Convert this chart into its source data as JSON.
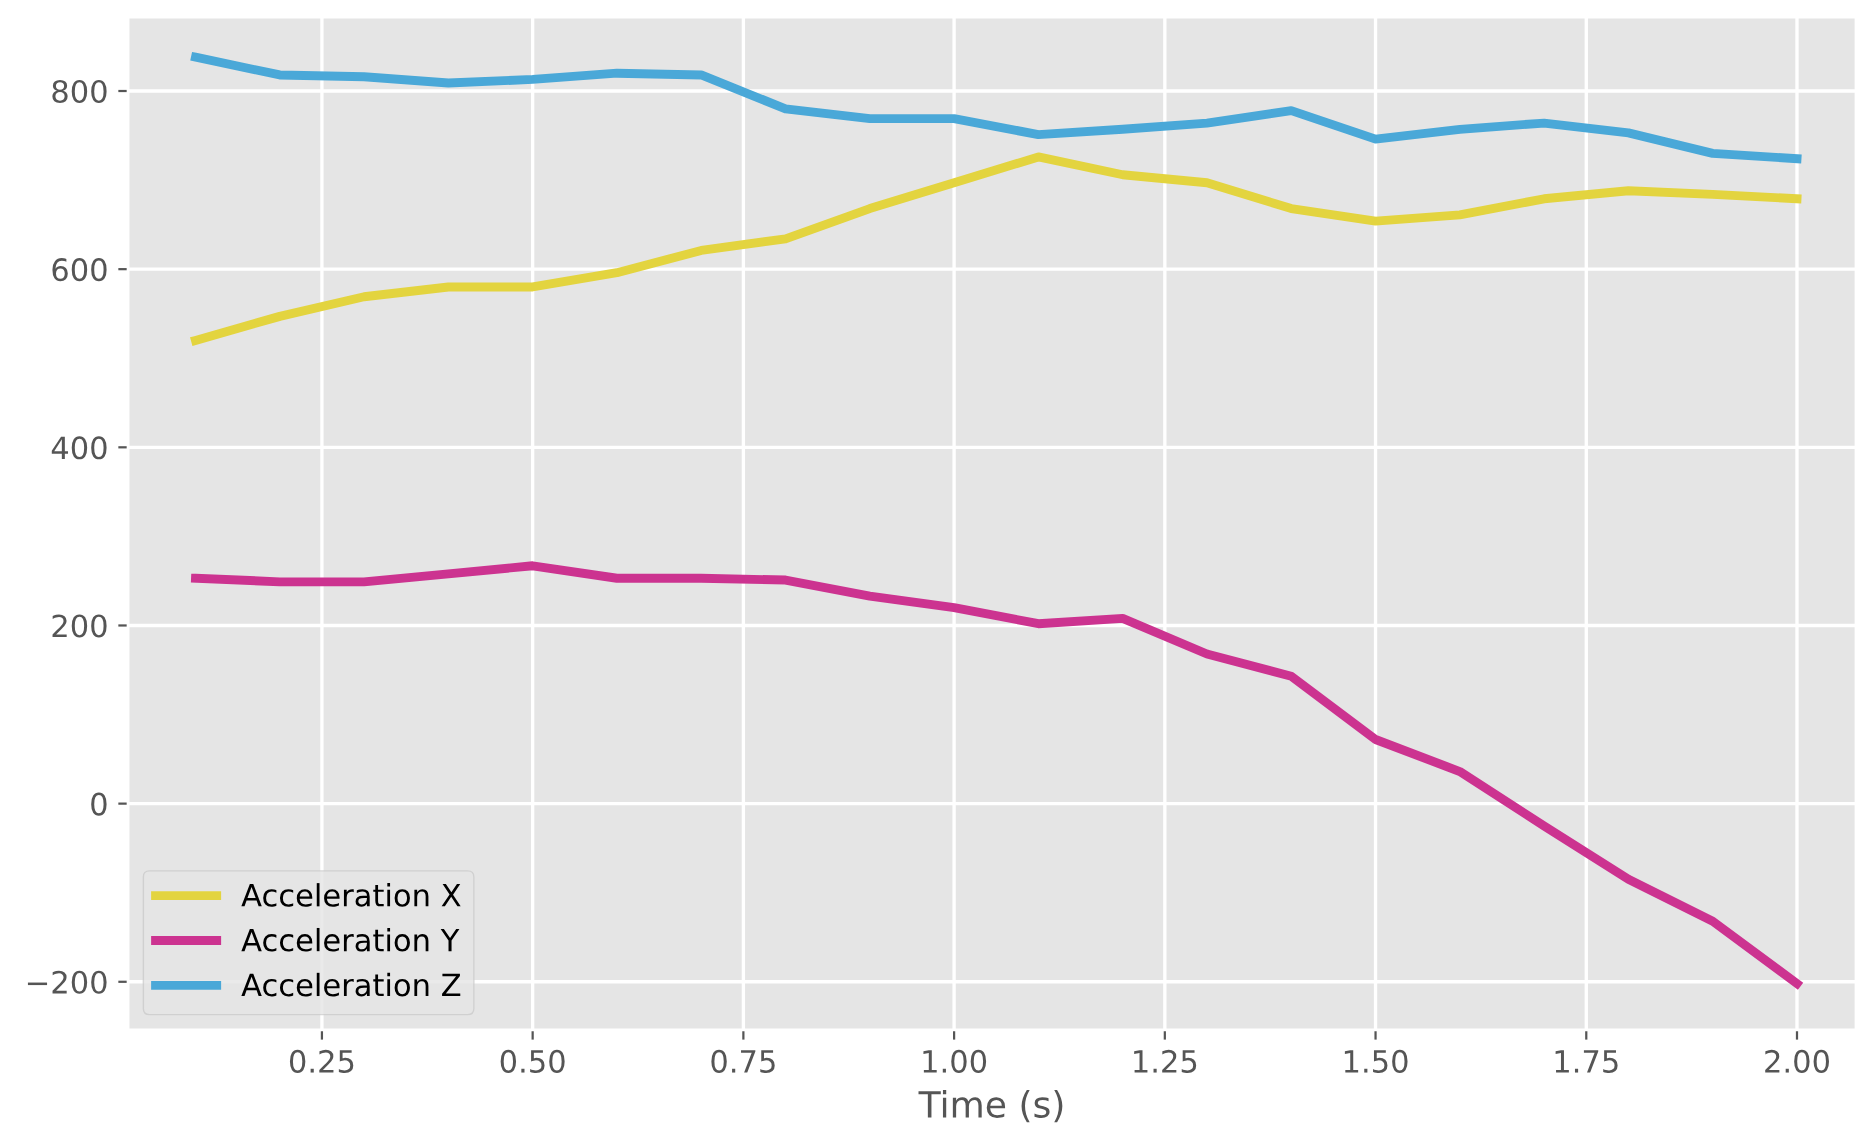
{
  "chart_data": {
    "type": "line",
    "xlabel": "Time (s)",
    "x": [
      0.1,
      0.2,
      0.3,
      0.4,
      0.5,
      0.6,
      0.7,
      0.8,
      0.9,
      1.0,
      1.1,
      1.2,
      1.3,
      1.4,
      1.5,
      1.6,
      1.7,
      1.8,
      1.9,
      2.0
    ],
    "series": [
      {
        "name": "Acceleration X",
        "color": "#e3d43f",
        "values": [
          520,
          547,
          569,
          580,
          580,
          596,
          621,
          634,
          668,
          697,
          726,
          706,
          697,
          668,
          654,
          661,
          679,
          688,
          684,
          679
        ]
      },
      {
        "name": "Acceleration Y",
        "color": "#cc3390",
        "values": [
          253,
          249,
          249,
          258,
          267,
          253,
          253,
          251,
          233,
          220,
          202,
          208,
          168,
          143,
          72,
          36,
          -25,
          -85,
          -132,
          -202
        ]
      },
      {
        "name": "Acceleration Z",
        "color": "#4aa8d8",
        "values": [
          838,
          818,
          816,
          809,
          813,
          820,
          818,
          780,
          769,
          769,
          751,
          757,
          764,
          778,
          746,
          757,
          764,
          753,
          730,
          724
        ]
      }
    ],
    "xlim": [
      0.02,
      2.07
    ],
    "ylim": [
      -254,
      883
    ],
    "xticks": [
      {
        "value": 0.25,
        "label": "0.25"
      },
      {
        "value": 0.5,
        "label": "0.50"
      },
      {
        "value": 0.75,
        "label": "0.75"
      },
      {
        "value": 1.0,
        "label": "1.00"
      },
      {
        "value": 1.25,
        "label": "1.25"
      },
      {
        "value": 1.5,
        "label": "1.50"
      },
      {
        "value": 1.75,
        "label": "1.75"
      },
      {
        "value": 2.0,
        "label": "2.00"
      }
    ],
    "yticks": [
      {
        "value": -200,
        "label": "−200"
      },
      0,
      200,
      400,
      600,
      800
    ],
    "grid": true,
    "legend": "bottom left",
    "line_style": "solid",
    "marker": "none"
  }
}
